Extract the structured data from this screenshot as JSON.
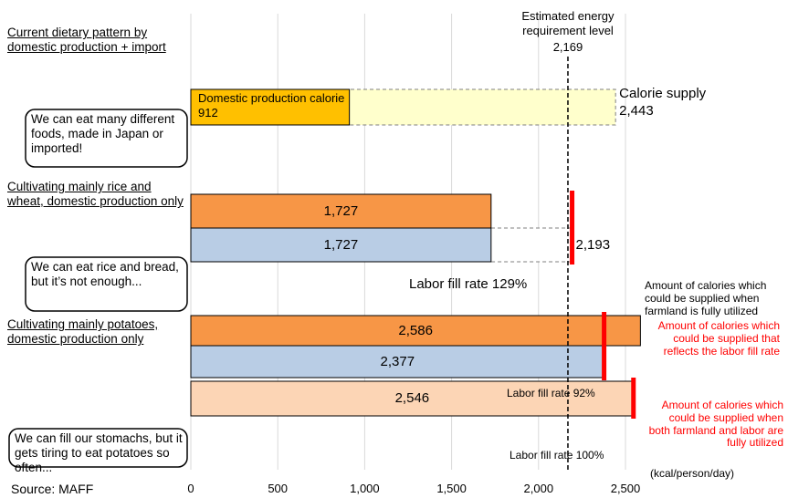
{
  "chart_data": {
    "type": "bar",
    "xlim": [
      0,
      2500
    ],
    "xticks": [
      0,
      500,
      {
        "value": 1000,
        "label": "1,000"
      },
      {
        "value": 1500,
        "label": "1,500"
      },
      {
        "value": 2000,
        "label": "2,000"
      },
      {
        "value": 2500,
        "label": "2,500"
      }
    ],
    "grid": true,
    "reference": {
      "value": 2169,
      "label": "Estimated energy requirement level",
      "value_label": "2,169"
    },
    "scenarios": [
      {
        "title": "Current dietary pattern by domestic production + import",
        "speech": "We can eat many different foods, made in Japan or imported!",
        "rows": [
          [
            {
              "value": 2443,
              "name": "Calorie supply",
              "value_label": "2,443",
              "color": "#ffffcc",
              "style": "dashed"
            },
            {
              "value": 912,
              "value_label": "Domestic production calorie 912",
              "color": "#ffc000",
              "style": "solid"
            }
          ]
        ]
      },
      {
        "title": "Cultivating mainly rice and wheat, domestic production only",
        "speech": "We can eat rice and bread, but it’s not enough...",
        "rows": [
          [
            {
              "value": 1727,
              "value_label": "1,727",
              "color": "#f79646",
              "style": "solid"
            }
          ],
          [
            {
              "value": 2193,
              "value_label": "2,193",
              "color": "#ffffff",
              "style": "dashed"
            },
            {
              "value": 1727,
              "value_label": "1,727",
              "color": "#b9cde5",
              "style": "solid"
            }
          ]
        ],
        "labor_fill": {
          "value": 129,
          "label": "Labor fill rate 129%"
        }
      },
      {
        "title": "Cultivating mainly potatoes, domestic production only",
        "rows": [
          [
            {
              "value": 2586,
              "value_label": "2,586",
              "color": "#f79646",
              "style": "solid"
            }
          ],
          [
            {
              "value": 2377,
              "value_label": "2,377",
              "color": "#b9cde5",
              "style": "solid"
            }
          ]
        ],
        "labor_fill": {
          "value": 92,
          "label": "Labor fill rate 92%"
        }
      },
      {
        "speech": "We can fill our stomachs, but it gets tiring to eat potatoes so often...",
        "rows": [
          [
            {
              "value": 2546,
              "value_label": "2,546",
              "color": "#fcd5b5",
              "style": "solid"
            }
          ]
        ],
        "labor_fill": {
          "value": 100,
          "label": "Labor fill rate 100%"
        }
      }
    ],
    "notes": [
      {
        "text": "Amount of calories which could be supplied when farmland is fully utilized",
        "color": "#000000"
      },
      {
        "text": "Amount of calories which could be supplied that reflects the labor fill rate",
        "color": "#ff0000"
      },
      {
        "text": "Amount of calories which could be supplied when both farmland and labor are fully utilized",
        "color": "#ff0000"
      }
    ],
    "unit": "(kcal/person/day)",
    "source": "Source: MAFF"
  }
}
